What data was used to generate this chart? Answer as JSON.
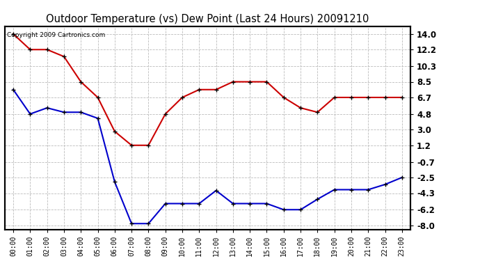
{
  "title": "Outdoor Temperature (vs) Dew Point (Last 24 Hours) 20091210",
  "copyright": "Copyright 2009 Cartronics.com",
  "hours": [
    "00:00",
    "01:00",
    "02:00",
    "03:00",
    "04:00",
    "05:00",
    "06:00",
    "07:00",
    "08:00",
    "09:00",
    "10:00",
    "11:00",
    "12:00",
    "13:00",
    "14:00",
    "15:00",
    "16:00",
    "17:00",
    "18:00",
    "19:00",
    "20:00",
    "21:00",
    "22:00",
    "23:00"
  ],
  "temp_red": [
    14.0,
    12.2,
    12.2,
    11.4,
    8.5,
    6.7,
    2.8,
    1.2,
    1.2,
    4.8,
    6.7,
    7.6,
    7.6,
    8.5,
    8.5,
    8.5,
    6.7,
    5.5,
    5.0,
    6.7,
    6.7,
    6.7,
    6.7,
    6.7
  ],
  "temp_blue": [
    7.6,
    4.8,
    5.5,
    5.0,
    5.0,
    4.3,
    -3.0,
    -7.8,
    -7.8,
    -5.5,
    -5.5,
    -5.5,
    -4.0,
    -5.5,
    -5.5,
    -5.5,
    -6.2,
    -6.2,
    -5.0,
    -3.9,
    -3.9,
    -3.9,
    -3.3,
    -2.5
  ],
  "yticks": [
    14.0,
    12.2,
    10.3,
    8.5,
    6.7,
    4.8,
    3.0,
    1.2,
    -0.7,
    -2.5,
    -4.3,
    -6.2,
    -8.0
  ],
  "red_color": "#cc0000",
  "blue_color": "#0000cc",
  "marker_color": "#000000",
  "background_color": "#ffffff",
  "plot_bg_color": "#ffffff",
  "grid_color": "#bbbbbb",
  "title_color": "#000000"
}
